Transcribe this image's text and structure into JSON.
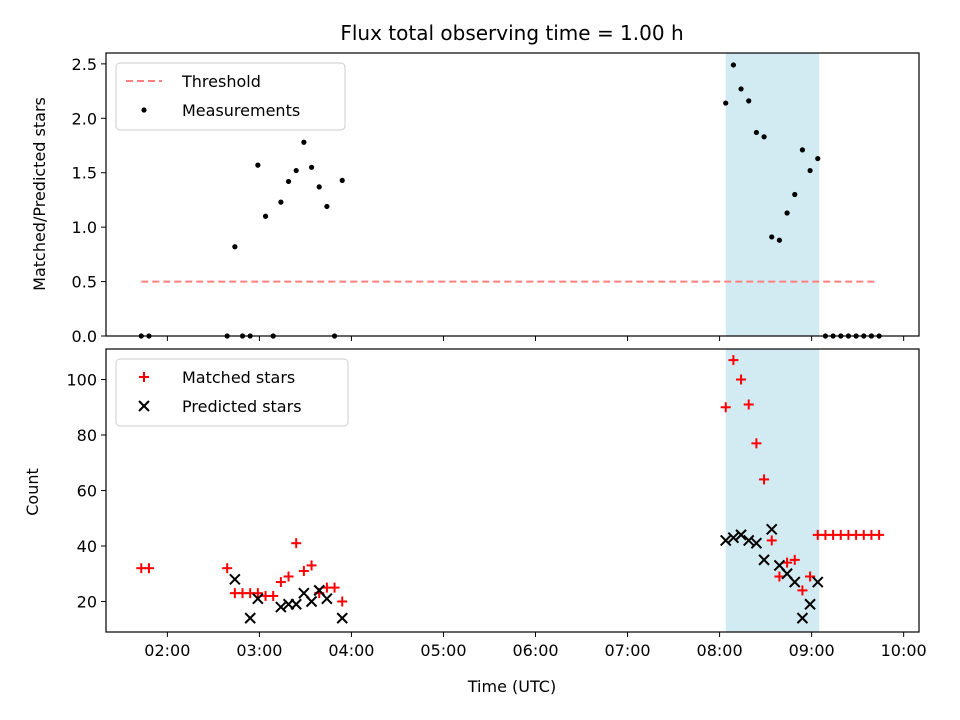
{
  "figure": {
    "title": "Flux total observing time = 1.00 h",
    "xlabel": "Time (UTC)"
  },
  "chart_data": [
    {
      "type": "scatter",
      "ylabel": "Matched/Predicted stars",
      "xlim": [
        "01:20",
        "10:10"
      ],
      "ylim": [
        0,
        2.6
      ],
      "yticks": [
        "0.0",
        "0.5",
        "1.0",
        "1.5",
        "2.0",
        "2.5"
      ],
      "xticks": [
        "02:00",
        "03:00",
        "04:00",
        "05:00",
        "06:00",
        "07:00",
        "08:00",
        "09:00",
        "10:00"
      ],
      "shaded_span": {
        "x0": "08:04",
        "x1": "09:05",
        "color": "#add8e6"
      },
      "legend": {
        "location": "upper-left",
        "entries": [
          "Threshold",
          "Measurements"
        ]
      },
      "series": [
        {
          "name": "Threshold",
          "style": "dashed-line",
          "color": "#ff7f7f",
          "x": [
            "01:43",
            "09:43"
          ],
          "y": [
            0.5,
            0.5
          ]
        },
        {
          "name": "Measurements",
          "style": "dot",
          "color": "#000000",
          "x": [
            "01:43",
            "01:48",
            "02:39",
            "02:44",
            "02:49",
            "02:54",
            "02:59",
            "03:04",
            "03:09",
            "03:14",
            "03:19",
            "03:24",
            "03:29",
            "03:34",
            "03:39",
            "03:44",
            "03:49",
            "03:54",
            "08:04",
            "08:09",
            "08:14",
            "08:19",
            "08:24",
            "08:29",
            "08:34",
            "08:39",
            "08:44",
            "08:49",
            "08:54",
            "08:59",
            "09:04",
            "09:09",
            "09:14",
            "09:19",
            "09:24",
            "09:29",
            "09:34",
            "09:39",
            "09:44"
          ],
          "y": [
            0,
            0,
            0,
            0.82,
            0,
            0,
            1.57,
            1.1,
            0,
            1.23,
            1.42,
            1.52,
            1.78,
            1.55,
            1.37,
            1.19,
            0,
            1.43,
            2.14,
            2.49,
            2.27,
            2.16,
            1.87,
            1.83,
            0.91,
            0.88,
            1.13,
            1.3,
            1.71,
            1.52,
            1.63,
            0,
            0,
            0,
            0,
            0,
            0,
            0,
            0
          ]
        }
      ]
    },
    {
      "type": "scatter",
      "ylabel": "Count",
      "xlim": [
        "01:20",
        "10:10"
      ],
      "ylim": [
        9,
        111
      ],
      "yticks": [
        "20",
        "40",
        "60",
        "80",
        "100"
      ],
      "xticks": [
        "02:00",
        "03:00",
        "04:00",
        "05:00",
        "06:00",
        "07:00",
        "08:00",
        "09:00",
        "10:00"
      ],
      "shaded_span": {
        "x0": "08:04",
        "x1": "09:05",
        "color": "#add8e6"
      },
      "legend": {
        "location": "upper-left",
        "entries": [
          "Matched stars",
          "Predicted stars"
        ]
      },
      "series": [
        {
          "name": "Matched stars",
          "marker": "+",
          "color": "#ff0000",
          "x": [
            "01:43",
            "01:48",
            "02:39",
            "02:44",
            "02:49",
            "02:54",
            "02:59",
            "03:04",
            "03:09",
            "03:14",
            "03:19",
            "03:24",
            "03:29",
            "03:34",
            "03:39",
            "03:44",
            "03:49",
            "03:54",
            "08:04",
            "08:09",
            "08:14",
            "08:19",
            "08:24",
            "08:29",
            "08:34",
            "08:39",
            "08:44",
            "08:49",
            "08:54",
            "08:59",
            "09:04",
            "09:09",
            "09:14",
            "09:19",
            "09:24",
            "09:29",
            "09:34",
            "09:39",
            "09:44"
          ],
          "y": [
            32,
            32,
            32,
            23,
            23,
            23,
            23,
            22,
            22,
            27,
            29,
            41,
            31,
            33,
            23,
            25,
            25,
            20,
            90,
            107,
            100,
            91,
            77,
            64,
            42,
            29,
            34,
            35,
            24,
            29,
            44,
            44,
            44,
            44,
            44,
            44,
            44,
            44,
            44
          ]
        },
        {
          "name": "Predicted stars",
          "marker": "x",
          "color": "#000000",
          "x": [
            "02:44",
            "02:54",
            "02:59",
            "03:14",
            "03:19",
            "03:24",
            "03:29",
            "03:34",
            "03:39",
            "03:44",
            "03:54",
            "08:04",
            "08:09",
            "08:14",
            "08:19",
            "08:24",
            "08:29",
            "08:34",
            "08:39",
            "08:44",
            "08:49",
            "08:54",
            "08:59",
            "09:04"
          ],
          "y": [
            28,
            14,
            21,
            18,
            19,
            19,
            23,
            20,
            24,
            21,
            14,
            42,
            43,
            44,
            42,
            41,
            35,
            46,
            33,
            30,
            27,
            14,
            19,
            27
          ]
        }
      ]
    }
  ]
}
